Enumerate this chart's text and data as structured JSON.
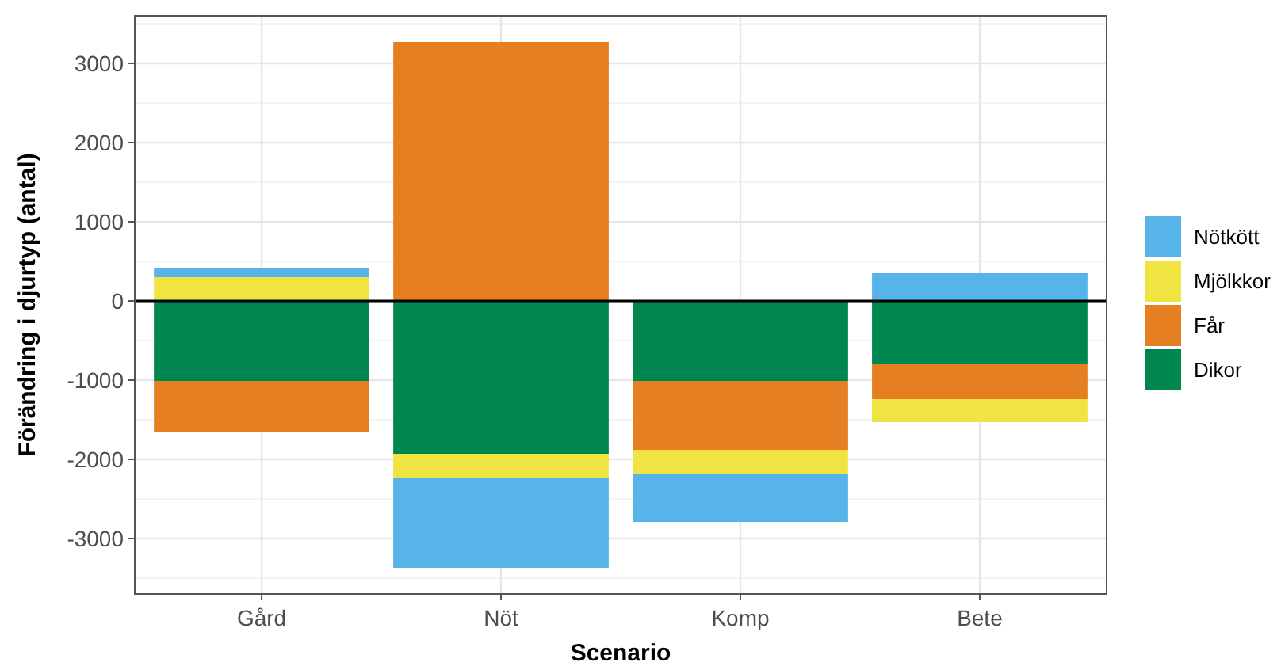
{
  "chart_data": {
    "type": "bar",
    "stacked": true,
    "xlabel": "Scenario",
    "ylabel": "Förändring i djurtyp (antal)",
    "categories": [
      "Gård",
      "Nöt",
      "Komp",
      "Bete"
    ],
    "series": [
      {
        "name": "Dikor",
        "color": "#00874f",
        "values": [
          -1010,
          -1930,
          -1010,
          -800
        ]
      },
      {
        "name": "Får",
        "color": "#e67e22",
        "values": [
          -640,
          3270,
          -870,
          -440
        ]
      },
      {
        "name": "Mjölkkor",
        "color": "#f0e442",
        "values": [
          300,
          -310,
          -300,
          -290
        ]
      },
      {
        "name": "Nötkött",
        "color": "#56b4e9",
        "values": [
          110,
          -1130,
          -610,
          350
        ]
      }
    ],
    "ylim": [
      -3700,
      3600
    ],
    "yticks": [
      -3000,
      -2000,
      -1000,
      0,
      1000,
      2000,
      3000
    ],
    "grid": true,
    "legend": "right",
    "ref_lines": [
      {
        "axis": "y",
        "value": 0,
        "color": "#000000"
      }
    ]
  }
}
